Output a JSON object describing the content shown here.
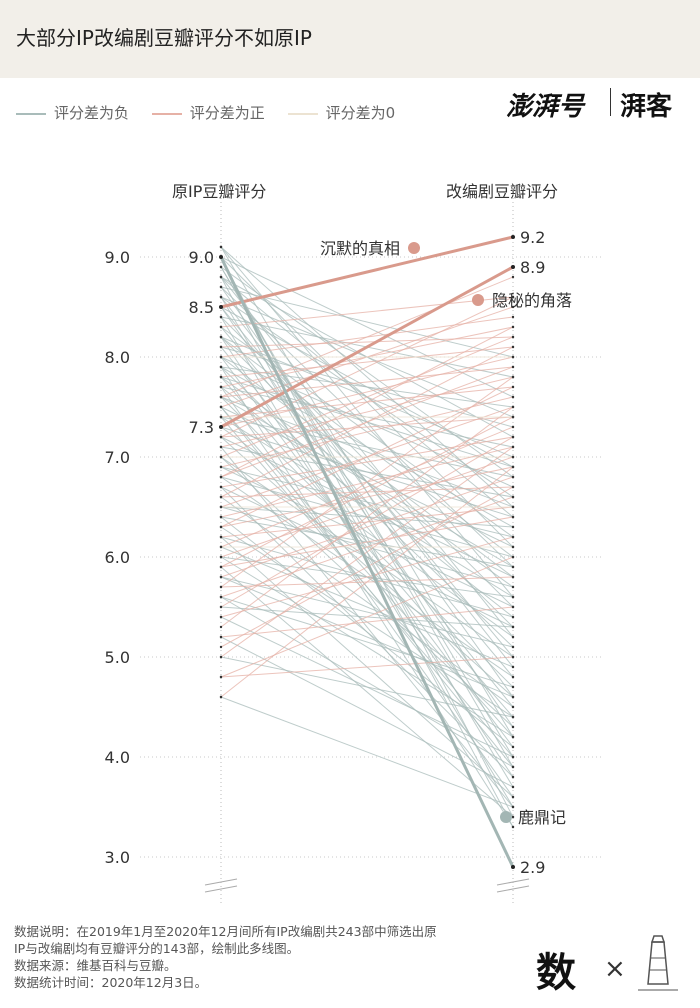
{
  "header": {
    "title": "大部分IP改编剧豆瓣评分不如原IP"
  },
  "legend": [
    {
      "label": "评分差为负",
      "color": "#a9bcba"
    },
    {
      "label": "评分差为正",
      "color": "#e6b1a6"
    },
    {
      "label": "评分差为0",
      "color": "#ece3d2"
    }
  ],
  "brand": {
    "name": "澎湃号",
    "column": "湃客"
  },
  "footer": {
    "note_line1": "数据说明：在2019年1月至2020年12月间所有IP改编剧共243部中筛选出原",
    "note_line2": "IP与改编剧均有豆瓣评分的143部，绘制此多线图。",
    "source": "数据来源：维基百科与豆瓣。",
    "date": "数据统计时间：2020年12月3日。",
    "logo_text": "数"
  },
  "colors": {
    "negative": "#a9bcba",
    "positive": "#e6b1a6",
    "zero": "#ece3d2",
    "highlight_pos": "#d99a8c",
    "highlight_neg": "#a3b6b4"
  },
  "chart_data": {
    "type": "slope",
    "left_label": "原IP豆瓣评分",
    "right_label": "改编剧豆瓣评分",
    "y_ticks": [
      "3.0",
      "4.0",
      "5.0",
      "6.0",
      "7.0",
      "8.0",
      "9.0"
    ],
    "ylim": [
      2.9,
      9.2
    ],
    "highlights": [
      {
        "name": "沉默的真相",
        "from": 8.5,
        "to": 9.2,
        "from_label": "8.5",
        "to_label": "9.2",
        "kind": "positive"
      },
      {
        "name": "隐秘的角落",
        "from": 7.3,
        "to": 8.9,
        "from_label": "7.3",
        "to_label": "8.9",
        "kind": "positive"
      },
      {
        "name": "鹿鼎记",
        "from": 9.0,
        "to": 2.9,
        "from_label": "9.0",
        "to_label": "2.9",
        "kind": "negative"
      }
    ],
    "series": [
      {
        "from": 9.1,
        "to": 4.2
      },
      {
        "from": 9.1,
        "to": 5.6
      },
      {
        "from": 9.0,
        "to": 3.4
      },
      {
        "from": 9.0,
        "to": 6.1
      },
      {
        "from": 9.0,
        "to": 7.6
      },
      {
        "from": 8.9,
        "to": 4.0
      },
      {
        "from": 8.9,
        "to": 6.8
      },
      {
        "from": 8.9,
        "to": 3.9
      },
      {
        "from": 8.8,
        "to": 5.2
      },
      {
        "from": 8.8,
        "to": 7.2
      },
      {
        "from": 8.8,
        "to": 6.4
      },
      {
        "from": 8.7,
        "to": 4.6
      },
      {
        "from": 8.7,
        "to": 8.0
      },
      {
        "from": 8.7,
        "to": 5.9
      },
      {
        "from": 8.6,
        "to": 3.7
      },
      {
        "from": 8.6,
        "to": 6.6
      },
      {
        "from": 8.6,
        "to": 7.4
      },
      {
        "from": 8.5,
        "to": 5.0
      },
      {
        "from": 8.5,
        "to": 6.9
      },
      {
        "from": 8.5,
        "to": 4.3
      },
      {
        "from": 8.4,
        "to": 5.5
      },
      {
        "from": 8.4,
        "to": 7.8
      },
      {
        "from": 8.4,
        "to": 3.5
      },
      {
        "from": 8.3,
        "to": 6.2
      },
      {
        "from": 8.3,
        "to": 4.8
      },
      {
        "from": 8.3,
        "to": 8.6
      },
      {
        "from": 8.2,
        "to": 5.3
      },
      {
        "from": 8.2,
        "to": 7.0
      },
      {
        "from": 8.2,
        "to": 3.8
      },
      {
        "from": 8.2,
        "to": 6.0
      },
      {
        "from": 8.1,
        "to": 4.5
      },
      {
        "from": 8.1,
        "to": 7.3
      },
      {
        "from": 8.1,
        "to": 8.2
      },
      {
        "from": 8.0,
        "to": 5.8
      },
      {
        "from": 8.0,
        "to": 4.1
      },
      {
        "from": 8.0,
        "to": 6.7
      },
      {
        "from": 8.0,
        "to": 8.4
      },
      {
        "from": 7.9,
        "to": 5.1
      },
      {
        "from": 7.9,
        "to": 7.5
      },
      {
        "from": 7.9,
        "to": 3.3
      },
      {
        "from": 7.9,
        "to": 6.3
      },
      {
        "from": 7.8,
        "to": 4.4
      },
      {
        "from": 7.8,
        "to": 8.1
      },
      {
        "from": 7.8,
        "to": 5.7
      },
      {
        "from": 7.8,
        "to": 6.9
      },
      {
        "from": 7.7,
        "to": 3.6
      },
      {
        "from": 7.7,
        "to": 7.1
      },
      {
        "from": 7.7,
        "to": 8.3
      },
      {
        "from": 7.7,
        "to": 5.4
      },
      {
        "from": 7.6,
        "to": 4.7
      },
      {
        "from": 7.6,
        "to": 6.5
      },
      {
        "from": 7.6,
        "to": 7.9
      },
      {
        "from": 7.6,
        "to": 5.9
      },
      {
        "from": 7.5,
        "to": 4.2
      },
      {
        "from": 7.5,
        "to": 8.5
      },
      {
        "from": 7.5,
        "to": 6.1
      },
      {
        "from": 7.5,
        "to": 3.9
      },
      {
        "from": 7.4,
        "to": 5.6
      },
      {
        "from": 7.4,
        "to": 7.7
      },
      {
        "from": 7.4,
        "to": 6.8
      },
      {
        "from": 7.4,
        "to": 4.0
      },
      {
        "from": 7.3,
        "to": 5.2
      },
      {
        "from": 7.3,
        "to": 8.0
      },
      {
        "from": 7.3,
        "to": 6.4
      },
      {
        "from": 7.2,
        "to": 4.6
      },
      {
        "from": 7.2,
        "to": 7.4
      },
      {
        "from": 7.2,
        "to": 5.8
      },
      {
        "from": 7.2,
        "to": 8.6
      },
      {
        "from": 7.1,
        "to": 3.5
      },
      {
        "from": 7.1,
        "to": 6.6
      },
      {
        "from": 7.1,
        "to": 7.8
      },
      {
        "from": 7.0,
        "to": 5.0
      },
      {
        "from": 7.0,
        "to": 7.0
      },
      {
        "from": 7.0,
        "to": 8.2
      },
      {
        "from": 7.0,
        "to": 4.3
      },
      {
        "from": 6.9,
        "to": 6.2
      },
      {
        "from": 6.9,
        "to": 7.6
      },
      {
        "from": 6.9,
        "to": 5.5
      },
      {
        "from": 6.8,
        "to": 4.8
      },
      {
        "from": 6.8,
        "to": 7.9
      },
      {
        "from": 6.8,
        "to": 6.0
      },
      {
        "from": 6.7,
        "to": 5.3
      },
      {
        "from": 6.7,
        "to": 7.2
      },
      {
        "from": 6.7,
        "to": 3.8
      },
      {
        "from": 6.6,
        "to": 6.7
      },
      {
        "from": 6.6,
        "to": 8.1
      },
      {
        "from": 6.6,
        "to": 4.5
      },
      {
        "from": 6.5,
        "to": 5.7
      },
      {
        "from": 6.5,
        "to": 7.5
      },
      {
        "from": 6.5,
        "to": 6.3
      },
      {
        "from": 6.4,
        "to": 4.1
      },
      {
        "from": 6.4,
        "to": 7.1
      },
      {
        "from": 6.4,
        "to": 5.9
      },
      {
        "from": 6.3,
        "to": 6.9
      },
      {
        "from": 6.3,
        "to": 4.4
      },
      {
        "from": 6.3,
        "to": 7.7
      },
      {
        "from": 6.2,
        "to": 5.4
      },
      {
        "from": 6.2,
        "to": 6.5
      },
      {
        "from": 6.2,
        "to": 3.6
      },
      {
        "from": 6.1,
        "to": 7.3
      },
      {
        "from": 6.1,
        "to": 4.9
      },
      {
        "from": 6.1,
        "to": 6.1
      },
      {
        "from": 6.0,
        "to": 5.6
      },
      {
        "from": 6.0,
        "to": 7.0
      },
      {
        "from": 6.0,
        "to": 4.2
      },
      {
        "from": 5.9,
        "to": 6.4
      },
      {
        "from": 5.9,
        "to": 3.4
      },
      {
        "from": 5.9,
        "to": 7.4
      },
      {
        "from": 5.8,
        "to": 5.1
      },
      {
        "from": 5.8,
        "to": 6.8
      },
      {
        "from": 5.8,
        "to": 4.6
      },
      {
        "from": 5.7,
        "to": 7.8
      },
      {
        "from": 5.7,
        "to": 5.8
      },
      {
        "from": 5.6,
        "to": 3.9
      },
      {
        "from": 5.6,
        "to": 6.6
      },
      {
        "from": 5.6,
        "to": 4.7
      },
      {
        "from": 5.5,
        "to": 7.2
      },
      {
        "from": 5.5,
        "to": 5.3
      },
      {
        "from": 5.4,
        "to": 6.2
      },
      {
        "from": 5.4,
        "to": 4.0
      },
      {
        "from": 5.3,
        "to": 7.5
      },
      {
        "from": 5.2,
        "to": 5.5
      },
      {
        "from": 5.2,
        "to": 3.7
      },
      {
        "from": 5.1,
        "to": 6.7
      },
      {
        "from": 5.0,
        "to": 4.4
      },
      {
        "from": 5.0,
        "to": 7.1
      },
      {
        "from": 4.8,
        "to": 6.0
      },
      {
        "from": 4.8,
        "to": 5.0
      },
      {
        "from": 4.6,
        "to": 6.9
      },
      {
        "from": 4.6,
        "to": 3.5
      },
      {
        "from": 8.8,
        "to": 3.3
      },
      {
        "from": 8.6,
        "to": 4.9
      },
      {
        "from": 9.1,
        "to": 6.5
      },
      {
        "from": 7.6,
        "to": 8.8
      },
      {
        "from": 6.8,
        "to": 8.3
      },
      {
        "from": 7.4,
        "to": 7.4
      },
      {
        "from": 6.5,
        "to": 6.5
      },
      {
        "from": 8.0,
        "to": 8.0
      }
    ]
  }
}
